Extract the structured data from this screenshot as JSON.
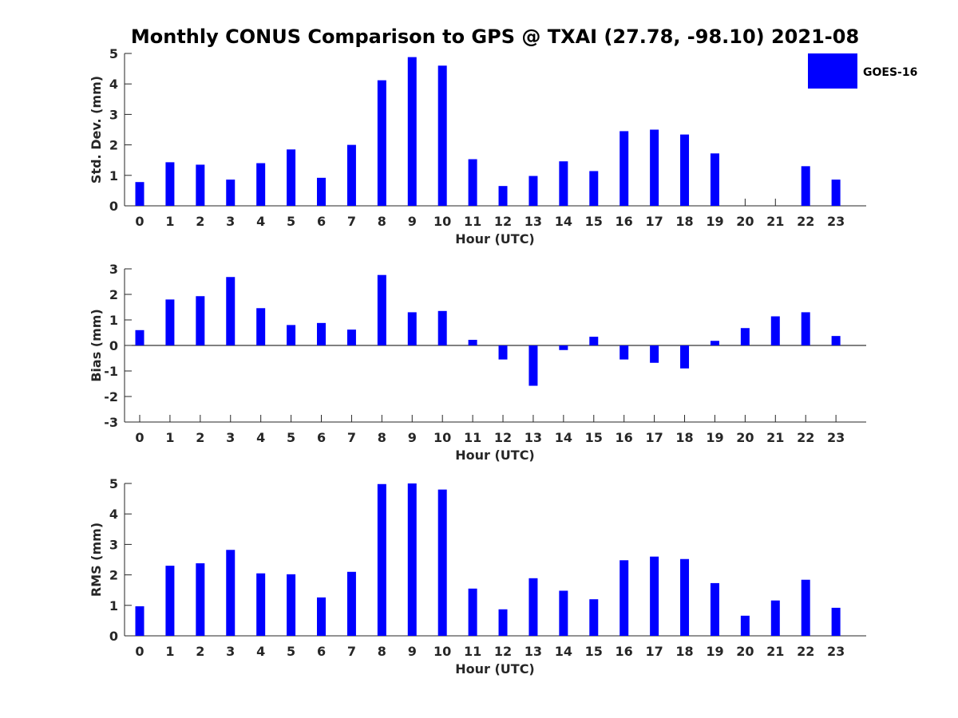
{
  "chart_data": {
    "title": "Monthly CONUS Comparison to GPS @ TXAI (27.78, -98.10) 2021-08",
    "legend": {
      "label": "GOES-16",
      "color": "#0000ff",
      "position": "top-right"
    },
    "panels": [
      {
        "type": "bar",
        "xlabel": "Hour (UTC)",
        "ylabel": "Std. Dev. (mm)",
        "ylim": [
          0,
          5
        ],
        "yticks": [
          0,
          1,
          2,
          3,
          4,
          5
        ],
        "categories": [
          "0",
          "1",
          "2",
          "3",
          "4",
          "5",
          "6",
          "7",
          "8",
          "9",
          "10",
          "11",
          "12",
          "13",
          "14",
          "15",
          "16",
          "17",
          "18",
          "19",
          "20",
          "21",
          "22",
          "23"
        ],
        "values": [
          0.78,
          1.43,
          1.35,
          0.86,
          1.4,
          1.85,
          0.92,
          2.0,
          4.12,
          4.88,
          4.6,
          1.53,
          0.65,
          0.98,
          1.46,
          1.14,
          2.45,
          2.5,
          2.34,
          1.72,
          0,
          0,
          1.3,
          0.86
        ],
        "series_color": "#0000ff"
      },
      {
        "type": "bar",
        "xlabel": "Hour (UTC)",
        "ylabel": "Bias (mm)",
        "ylim": [
          -3,
          3
        ],
        "yticks": [
          -3,
          -2,
          -1,
          0,
          1,
          2,
          3
        ],
        "categories": [
          "0",
          "1",
          "2",
          "3",
          "4",
          "5",
          "6",
          "7",
          "8",
          "9",
          "10",
          "11",
          "12",
          "13",
          "14",
          "15",
          "16",
          "17",
          "18",
          "19",
          "20",
          "21",
          "22",
          "23"
        ],
        "values": [
          0.6,
          1.8,
          1.93,
          2.68,
          1.46,
          0.8,
          0.88,
          0.62,
          2.76,
          1.3,
          1.35,
          0.22,
          -0.55,
          -1.58,
          -0.18,
          0.34,
          -0.55,
          -0.68,
          -0.9,
          0.18,
          0.68,
          1.14,
          1.3,
          0.37
        ],
        "series_color": "#0000ff"
      },
      {
        "type": "bar",
        "xlabel": "Hour (UTC)",
        "ylabel": "RMS (mm)",
        "ylim": [
          0,
          5
        ],
        "yticks": [
          0,
          1,
          2,
          3,
          4,
          5
        ],
        "categories": [
          "0",
          "1",
          "2",
          "3",
          "4",
          "5",
          "6",
          "7",
          "8",
          "9",
          "10",
          "11",
          "12",
          "13",
          "14",
          "15",
          "16",
          "17",
          "18",
          "19",
          "20",
          "21",
          "22",
          "23"
        ],
        "values": [
          0.97,
          2.3,
          2.38,
          2.82,
          2.05,
          2.02,
          1.26,
          2.1,
          4.98,
          5.0,
          4.8,
          1.55,
          0.87,
          1.89,
          1.48,
          1.2,
          2.48,
          2.6,
          2.52,
          1.73,
          0.66,
          1.16,
          1.84,
          0.92
        ],
        "series_color": "#0000ff"
      }
    ]
  }
}
